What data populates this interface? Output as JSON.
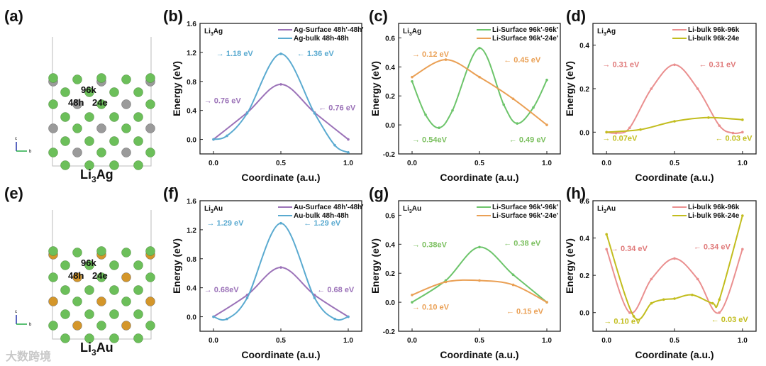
{
  "panel_labels": [
    "(a)",
    "(b)",
    "(c)",
    "(d)",
    "(e)",
    "(f)",
    "(g)",
    "(h)"
  ],
  "structures": [
    {
      "name": [
        "Li",
        "3",
        "Ag"
      ],
      "sites": [
        "96k",
        "48h",
        "24e"
      ],
      "host_color": "#9a9a9a",
      "li_color": "#6cbf5a",
      "axes": [
        "c",
        "b"
      ]
    },
    {
      "name": [
        "Li",
        "3",
        "Au"
      ],
      "sites": [
        "96k",
        "48h",
        "24e"
      ],
      "host_color": "#d4962a",
      "li_color": "#6cbf5a",
      "axes": [
        "c",
        "b"
      ]
    }
  ],
  "watermark": "大数跨境",
  "chart_data": [
    {
      "id": "b",
      "type": "line",
      "material": [
        "Li",
        "3",
        "Ag"
      ],
      "xlabel": "Coordinate (a.u.)",
      "ylabel": "Energy (eV)",
      "xlim": [
        -0.1,
        1.1
      ],
      "ylim": [
        -0.2,
        1.6
      ],
      "xticks": [
        "0.0",
        "0.5",
        "1.0"
      ],
      "yticks": [
        "0.0",
        "0.4",
        "0.8",
        "1.2",
        "1.6"
      ],
      "series": [
        {
          "name": "Ag-Surface 48h'-48h'",
          "color": "#9b72b8",
          "x": [
            0,
            0.25,
            0.5,
            0.75,
            1
          ],
          "y": [
            0,
            0.37,
            0.76,
            0.37,
            0
          ]
        },
        {
          "name": "Ag-bulk 48h-48h",
          "color": "#5aaad0",
          "x": [
            0,
            0.1,
            0.25,
            0.5,
            0.75,
            0.9,
            1
          ],
          "y": [
            0,
            0.05,
            0.36,
            1.18,
            0.36,
            -0.08,
            -0.18
          ]
        }
      ],
      "annotations": [
        {
          "text": "→ 1.18 eV",
          "color": "#5aaad0"
        },
        {
          "text": "← 1.36 eV",
          "color": "#5aaad0"
        },
        {
          "text": "→ 0.76 eV",
          "color": "#9b72b8"
        },
        {
          "text": "← 0.76 eV",
          "color": "#9b72b8"
        }
      ]
    },
    {
      "id": "c",
      "type": "line",
      "material": [
        "Li",
        "3",
        "Ag"
      ],
      "xlabel": "Coordinate (a.u.)",
      "ylabel": "Energy (eV)",
      "xlim": [
        -0.1,
        1.1
      ],
      "ylim": [
        -0.2,
        0.7
      ],
      "xticks": [
        "0.0",
        "0.5",
        "1.0"
      ],
      "yticks": [
        "-0.2",
        "0.0",
        "0.2",
        "0.4",
        "0.6"
      ],
      "series": [
        {
          "name": "Li-Surface 96k'-96k'",
          "color": "#6cc46a",
          "x": [
            0,
            0.1,
            0.2,
            0.3,
            0.5,
            0.68,
            0.78,
            0.9,
            1
          ],
          "y": [
            0.3,
            0.07,
            -0.02,
            0.1,
            0.53,
            0.14,
            0.01,
            0.12,
            0.31
          ]
        },
        {
          "name": "Li-Surface 96k'-24e'",
          "color": "#eaa055",
          "x": [
            0,
            0.25,
            0.5,
            0.75,
            1
          ],
          "y": [
            0.33,
            0.45,
            0.33,
            0.18,
            0
          ]
        }
      ],
      "annotations": [
        {
          "text": "→ 0.12 eV",
          "color": "#eaa055"
        },
        {
          "text": "← 0.45 eV",
          "color": "#eaa055"
        },
        {
          "text": "→ 0.54eV",
          "color": "#7cc060"
        },
        {
          "text": "← 0.49 eV",
          "color": "#7cc060"
        }
      ]
    },
    {
      "id": "d",
      "type": "line",
      "material": [
        "Li",
        "3",
        "Ag"
      ],
      "xlabel": "Coordinate (a.u.)",
      "ylabel": "Energy (eV)",
      "xlim": [
        -0.1,
        1.1
      ],
      "ylim": [
        -0.1,
        0.5
      ],
      "xticks": [
        "0.0",
        "0.5",
        "1.0"
      ],
      "yticks": [
        "0.0",
        "0.2",
        "0.4"
      ],
      "series": [
        {
          "name": "Li-bulk 96k-96k",
          "color": "#ea8f8f",
          "x": [
            0,
            0.07,
            0.17,
            0.33,
            0.5,
            0.67,
            0.83,
            0.93,
            1
          ],
          "y": [
            0,
            -0.004,
            0.02,
            0.2,
            0.31,
            0.2,
            0.03,
            -0.004,
            0
          ]
        },
        {
          "name": "Li-bulk 96k-24e",
          "color": "#c2bd1e",
          "x": [
            0,
            0.25,
            0.5,
            0.75,
            1
          ],
          "y": [
            0,
            0.012,
            0.05,
            0.067,
            0.057
          ]
        }
      ],
      "annotations": [
        {
          "text": "→ 0.31 eV",
          "color": "#e07a7a"
        },
        {
          "text": "← 0.31 eV",
          "color": "#e07a7a"
        },
        {
          "text": "→ 0.07eV",
          "color": "#c2bd1e"
        },
        {
          "text": "← 0.03 eV",
          "color": "#c2bd1e"
        }
      ]
    },
    {
      "id": "f",
      "type": "line",
      "material": [
        "Li",
        "3",
        "Au"
      ],
      "xlabel": "Coordinate (a.u.)",
      "ylabel": "Energy (eV)",
      "xlim": [
        -0.1,
        1.1
      ],
      "ylim": [
        -0.2,
        1.6
      ],
      "xticks": [
        "0.0",
        "0.5",
        "1.0"
      ],
      "yticks": [
        "0.0",
        "0.4",
        "0.8",
        "1.2",
        "1.6"
      ],
      "series": [
        {
          "name": "Au-Surface 48h'-48h'",
          "color": "#9b72b8",
          "x": [
            0,
            0.25,
            0.5,
            0.75,
            1
          ],
          "y": [
            0,
            0.3,
            0.68,
            0.3,
            0
          ]
        },
        {
          "name": "Au-bulk 48h-48h",
          "color": "#5aaad0",
          "x": [
            0,
            0.1,
            0.25,
            0.5,
            0.75,
            0.9,
            1
          ],
          "y": [
            0,
            -0.03,
            0.26,
            1.29,
            0.26,
            -0.03,
            0
          ]
        }
      ],
      "annotations": [
        {
          "text": "→ 1.29 eV",
          "color": "#5aaad0"
        },
        {
          "text": "← 1.29 eV",
          "color": "#5aaad0"
        },
        {
          "text": "→ 0.68eV",
          "color": "#9b72b8"
        },
        {
          "text": "← 0.68 eV",
          "color": "#9b72b8"
        }
      ]
    },
    {
      "id": "g",
      "type": "line",
      "material": [
        "Li",
        "3",
        "Au"
      ],
      "xlabel": "Coordinate (a.u.)",
      "ylabel": "Energy (eV)",
      "xlim": [
        -0.1,
        1.1
      ],
      "ylim": [
        -0.2,
        0.7
      ],
      "xticks": [
        "0.0",
        "0.5",
        "1.0"
      ],
      "yticks": [
        "-0.2",
        "0.0",
        "0.2",
        "0.4",
        "0.6"
      ],
      "series": [
        {
          "name": "Li-Surface 96k'-96k'",
          "color": "#6cc46a",
          "x": [
            0,
            0.25,
            0.5,
            0.75,
            1
          ],
          "y": [
            0,
            0.15,
            0.38,
            0.19,
            0
          ]
        },
        {
          "name": "Li-Surface 96k'-24e'",
          "color": "#eaa055",
          "x": [
            0,
            0.25,
            0.5,
            0.75,
            1
          ],
          "y": [
            0.05,
            0.14,
            0.15,
            0.12,
            0
          ]
        }
      ],
      "annotations": [
        {
          "text": "→ 0.38eV",
          "color": "#7cc060"
        },
        {
          "text": "← 0.38 eV",
          "color": "#7cc060"
        },
        {
          "text": "→ 0.10 eV",
          "color": "#eaa055"
        },
        {
          "text": "← 0.15 eV",
          "color": "#eaa055"
        }
      ]
    },
    {
      "id": "h",
      "type": "line",
      "material": [
        "Li",
        "3",
        "Au"
      ],
      "xlabel": "Coordinate (a.u.)",
      "ylabel": "Energy (eV)",
      "xlim": [
        -0.1,
        1.1
      ],
      "ylim": [
        -0.1,
        0.6
      ],
      "xticks": [
        "0.0",
        "0.5",
        "1.0"
      ],
      "yticks": [
        "0.0",
        "0.2",
        "0.4",
        "0.6"
      ],
      "series": [
        {
          "name": "Li-bulk 96k-96k",
          "color": "#ea8f8f",
          "x": [
            0,
            0.17,
            0.33,
            0.5,
            0.67,
            0.83,
            1
          ],
          "y": [
            0.34,
            0,
            0.18,
            0.29,
            0.18,
            0,
            0.34
          ]
        },
        {
          "name": "Li-bulk 96k-24e",
          "color": "#c2bd1e",
          "x": [
            0,
            0.2,
            0.33,
            0.42,
            0.5,
            0.63,
            0.78,
            0.83,
            1
          ],
          "y": [
            0.42,
            -0.02,
            0.05,
            0.07,
            0.075,
            0.095,
            0.05,
            0.07,
            0.52
          ]
        }
      ],
      "annotations": [
        {
          "text": "→ 0.34 eV",
          "color": "#e07a7a"
        },
        {
          "text": "← 0.34 eV",
          "color": "#e07a7a"
        },
        {
          "text": "→ 0.10 eV",
          "color": "#c2bd1e"
        },
        {
          "text": "← 0.03 eV",
          "color": "#c2bd1e"
        }
      ]
    }
  ]
}
